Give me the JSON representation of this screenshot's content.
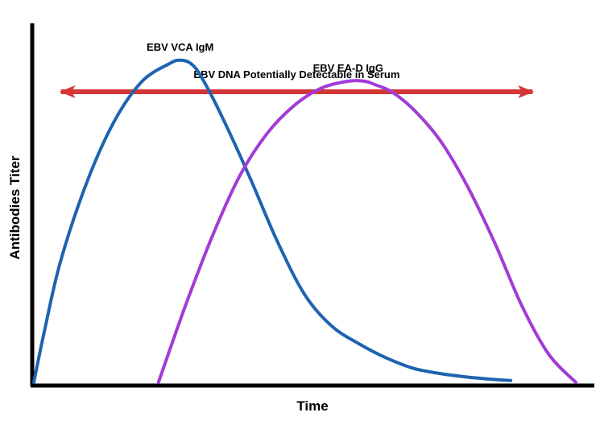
{
  "chart_data": {
    "type": "line",
    "title": "",
    "xlabel": "Time",
    "ylabel": "Antibodies Titer",
    "xlim": [
      0,
      100
    ],
    "ylim": [
      0,
      100
    ],
    "grid": false,
    "legend": "none",
    "annotation": {
      "text": "EBV DNA Potentially Detectable in Serum",
      "type": "double-arrow",
      "x_range": [
        5,
        92
      ],
      "y": 83,
      "color": "#d33636"
    },
    "series": [
      {
        "name": "EBV VCA IgM",
        "color": "#1f63b0",
        "x": [
          0,
          2,
          5,
          10,
          15,
          20,
          25,
          27,
          29,
          31,
          35,
          40,
          45,
          50,
          55,
          60,
          65,
          70,
          75,
          80,
          85,
          88
        ],
        "y": [
          0,
          15,
          35,
          58,
          75,
          86,
          91,
          92,
          91,
          87,
          75,
          58,
          40,
          25,
          16,
          11,
          7,
          4,
          2.5,
          1.5,
          0.8,
          0.5
        ]
      },
      {
        "name": "EBV EA-D IgG",
        "color": "#a23cd6",
        "x": [
          23,
          28,
          33,
          38,
          43,
          48,
          53,
          58,
          61,
          63,
          66,
          70,
          75,
          80,
          85,
          90,
          95,
          100
        ],
        "y": [
          0,
          22,
          42,
          59,
          71,
          79,
          84,
          86,
          86,
          85,
          83,
          78,
          69,
          56,
          40,
          22,
          8,
          0
        ]
      }
    ]
  }
}
